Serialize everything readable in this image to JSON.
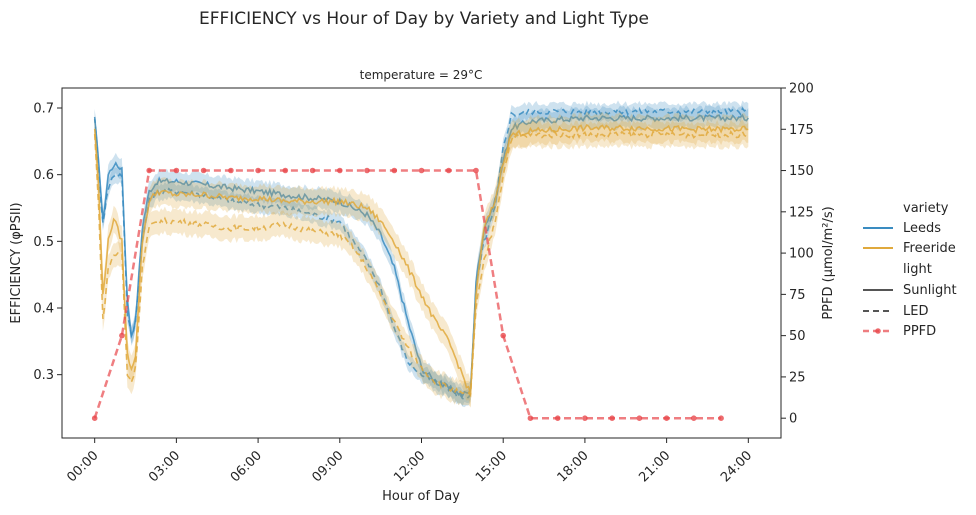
{
  "title": "EFFICIENCY vs Hour of Day by Variety and Light Type",
  "chart_data": {
    "type": "line",
    "facet_label": "temperature = 29°C",
    "xlabel": "Hour of Day",
    "ylabel_left": "EFFICIENCY (φPSII)",
    "ylabel_right": "PPFD (µmol/m²/s)",
    "x_ticks": [
      "00:00",
      "03:00",
      "06:00",
      "09:00",
      "12:00",
      "15:00",
      "18:00",
      "21:00",
      "24:00"
    ],
    "x_tick_hours": [
      0,
      3,
      6,
      9,
      12,
      15,
      18,
      21,
      24
    ],
    "xlim_hours": [
      -1.2,
      25.2
    ],
    "ylim_left": [
      0.205,
      0.73
    ],
    "y_ticks_left": [
      "0.3",
      "0.4",
      "0.5",
      "0.6",
      "0.7"
    ],
    "y_tick_values_left": [
      0.3,
      0.4,
      0.5,
      0.6,
      0.7
    ],
    "ylim_right": [
      -12,
      200
    ],
    "y_ticks_right": [
      "0",
      "25",
      "50",
      "75",
      "100",
      "125",
      "150",
      "175",
      "200"
    ],
    "y_tick_values_right": [
      0,
      25,
      50,
      75,
      100,
      125,
      150,
      175,
      200
    ],
    "legend": {
      "position": "right",
      "variety_title": "variety",
      "variety_items": [
        {
          "label": "Leeds",
          "color": "#3a8cc1"
        },
        {
          "label": "Freeride",
          "color": "#e0a93c"
        }
      ],
      "light_title": "light",
      "light_items": [
        {
          "label": "Sunlight",
          "style": "solid"
        },
        {
          "label": "LED",
          "style": "dashed"
        }
      ],
      "ppfd_label": "PPFD"
    },
    "colors": {
      "leeds": "#3a8cc1",
      "freeride": "#e0a93c",
      "ppfd": "#e8474b"
    },
    "series": [
      {
        "name": "Leeds",
        "light": "Sunlight",
        "style": "solid",
        "color": "#3a8cc1",
        "band": 0.015,
        "x": [
          0,
          0.15,
          0.3,
          0.5,
          0.7,
          1.0,
          1.2,
          1.35,
          1.5,
          1.75,
          2.0,
          2.3,
          3.0,
          4.0,
          5.0,
          6.0,
          7.0,
          8.0,
          9.0,
          9.5,
          10.0,
          10.5,
          11.0,
          11.5,
          12.0,
          12.5,
          13.0,
          13.5,
          13.8,
          14.0,
          14.3,
          14.7,
          15.0,
          15.3,
          16.0,
          18.0,
          20.0,
          22.0,
          24.0
        ],
        "y": [
          0.68,
          0.62,
          0.53,
          0.6,
          0.615,
          0.61,
          0.41,
          0.36,
          0.38,
          0.52,
          0.575,
          0.59,
          0.59,
          0.585,
          0.58,
          0.575,
          0.57,
          0.565,
          0.56,
          0.55,
          0.54,
          0.51,
          0.46,
          0.38,
          0.31,
          0.29,
          0.28,
          0.27,
          0.275,
          0.44,
          0.52,
          0.56,
          0.62,
          0.67,
          0.68,
          0.685,
          0.685,
          0.685,
          0.685
        ]
      },
      {
        "name": "Leeds",
        "light": "LED",
        "style": "dashed",
        "color": "#3a8cc1",
        "band": 0.012,
        "x": [
          0,
          0.15,
          0.3,
          0.5,
          0.7,
          1.0,
          1.2,
          1.35,
          1.5,
          1.75,
          2.0,
          2.3,
          3.0,
          4.0,
          5.0,
          6.0,
          7.0,
          8.0,
          9.0,
          9.5,
          10.0,
          10.5,
          11.0,
          11.5,
          12.0,
          12.5,
          13.0,
          13.5,
          13.8,
          14.0,
          14.3,
          14.7,
          15.0,
          15.3,
          16.0,
          18.0,
          20.0,
          22.0,
          24.0
        ],
        "y": [
          0.69,
          0.6,
          0.53,
          0.58,
          0.6,
          0.6,
          0.39,
          0.36,
          0.38,
          0.5,
          0.56,
          0.575,
          0.575,
          0.57,
          0.56,
          0.555,
          0.55,
          0.54,
          0.53,
          0.5,
          0.47,
          0.43,
          0.37,
          0.32,
          0.3,
          0.29,
          0.28,
          0.265,
          0.27,
          0.43,
          0.5,
          0.55,
          0.64,
          0.69,
          0.695,
          0.695,
          0.695,
          0.695,
          0.695
        ]
      },
      {
        "name": "Freeride",
        "light": "Sunlight",
        "style": "solid",
        "color": "#e0a93c",
        "band": 0.02,
        "x": [
          0,
          0.15,
          0.3,
          0.5,
          0.7,
          1.0,
          1.2,
          1.35,
          1.5,
          1.75,
          2.0,
          2.3,
          3.0,
          4.0,
          5.0,
          6.0,
          7.0,
          8.0,
          9.0,
          9.5,
          10.0,
          10.5,
          11.0,
          11.5,
          12.0,
          12.5,
          13.0,
          13.5,
          13.8,
          14.0,
          14.3,
          14.7,
          15.0,
          15.3,
          16.0,
          18.0,
          20.0,
          22.0,
          24.0
        ],
        "y": [
          0.67,
          0.58,
          0.42,
          0.5,
          0.535,
          0.5,
          0.33,
          0.31,
          0.33,
          0.5,
          0.56,
          0.575,
          0.57,
          0.57,
          0.565,
          0.565,
          0.56,
          0.56,
          0.56,
          0.555,
          0.55,
          0.53,
          0.5,
          0.46,
          0.42,
          0.38,
          0.35,
          0.3,
          0.27,
          0.42,
          0.52,
          0.56,
          0.62,
          0.66,
          0.665,
          0.67,
          0.67,
          0.668,
          0.668
        ]
      },
      {
        "name": "Freeride",
        "light": "LED",
        "style": "dashed",
        "color": "#e0a93c",
        "band": 0.018,
        "x": [
          0,
          0.15,
          0.3,
          0.5,
          0.7,
          1.0,
          1.2,
          1.35,
          1.5,
          1.75,
          2.0,
          2.3,
          3.0,
          4.0,
          5.0,
          6.0,
          7.0,
          8.0,
          9.0,
          9.5,
          10.0,
          10.5,
          11.0,
          11.5,
          12.0,
          12.5,
          13.0,
          13.5,
          13.8,
          14.0,
          14.3,
          14.7,
          15.0,
          15.3,
          16.0,
          18.0,
          20.0,
          22.0,
          24.0
        ],
        "y": [
          0.66,
          0.55,
          0.38,
          0.46,
          0.48,
          0.48,
          0.3,
          0.29,
          0.31,
          0.46,
          0.52,
          0.53,
          0.53,
          0.525,
          0.52,
          0.52,
          0.525,
          0.515,
          0.51,
          0.49,
          0.46,
          0.42,
          0.38,
          0.34,
          0.31,
          0.29,
          0.28,
          0.27,
          0.27,
          0.4,
          0.47,
          0.53,
          0.6,
          0.655,
          0.66,
          0.66,
          0.66,
          0.66,
          0.66
        ]
      }
    ],
    "ppfd": {
      "name": "PPFD",
      "style": "dashed",
      "marker": "circle",
      "color": "#e8474b",
      "x": [
        0,
        1,
        2,
        3,
        4,
        5,
        6,
        7,
        8,
        9,
        10,
        11,
        12,
        13,
        14,
        15,
        16,
        17,
        18,
        19,
        20,
        21,
        22,
        23
      ],
      "y": [
        0,
        50,
        150,
        150,
        150,
        150,
        150,
        150,
        150,
        150,
        150,
        150,
        150,
        150,
        150,
        50,
        0,
        0,
        0,
        0,
        0,
        0,
        0,
        0
      ]
    }
  }
}
